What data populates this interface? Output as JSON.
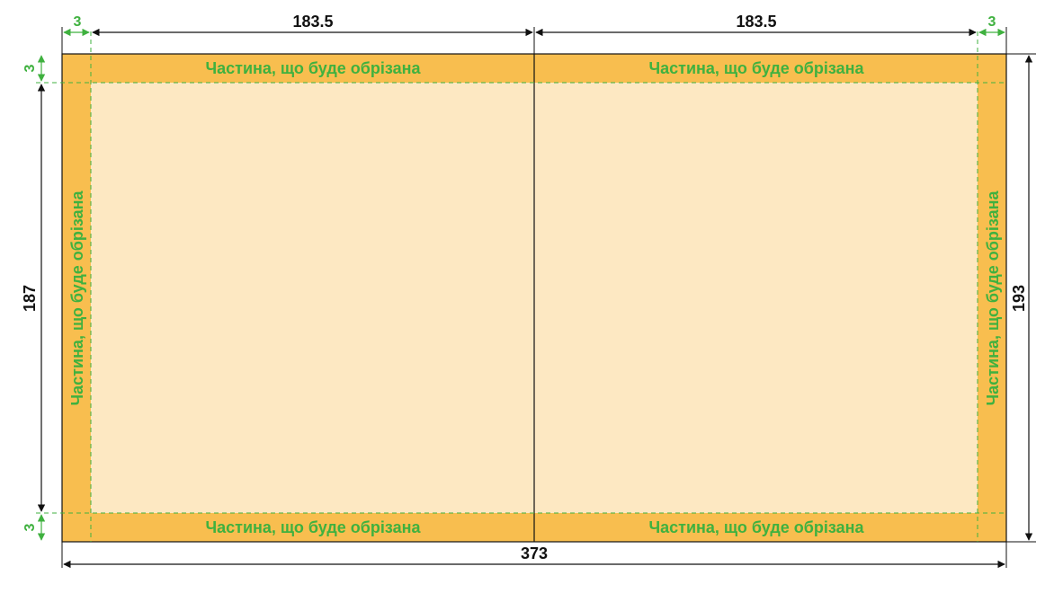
{
  "colors": {
    "bleed": "#F8BE4F",
    "trim_area": "#FDE8C2",
    "dimension_line": "#111111",
    "bleed_dimension": "#3FB13F",
    "trim_guide": "#3FB13F",
    "label": "#3FB13F"
  },
  "bleed_label": "Частина, що буде обрізана",
  "dimensions": {
    "bleed_left": "3",
    "half_width_left": "183.5",
    "half_width_right": "183.5",
    "bleed_right": "3",
    "bleed_top": "3",
    "bleed_bottom": "3",
    "trim_height": "187",
    "total_height": "193",
    "total_width": "373"
  }
}
